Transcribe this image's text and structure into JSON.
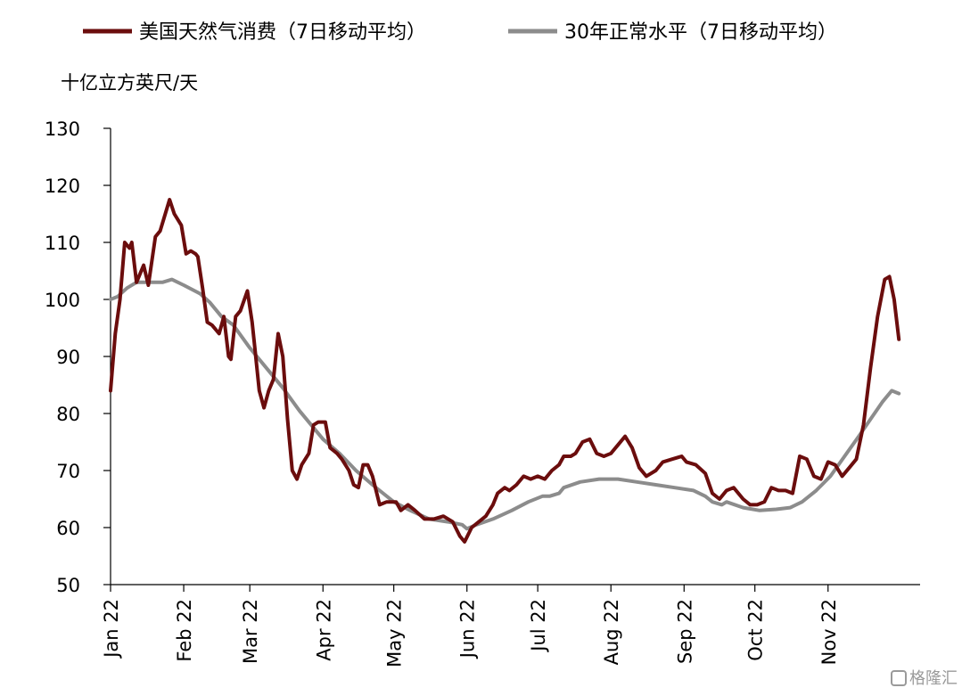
{
  "chart_data": {
    "type": "line",
    "ylabel": "十亿立方英尺/天",
    "ylim": [
      50,
      130
    ],
    "yticks": [
      50,
      60,
      70,
      80,
      90,
      100,
      110,
      120,
      130
    ],
    "xlim": [
      "2022-01-01",
      "2022-12-10"
    ],
    "xticks": [
      {
        "date": "2022-01-01",
        "label": "Jan 22"
      },
      {
        "date": "2022-02-01",
        "label": "Feb 22"
      },
      {
        "date": "2022-03-01",
        "label": "Mar 22"
      },
      {
        "date": "2022-04-01",
        "label": "Apr 22"
      },
      {
        "date": "2022-05-01",
        "label": "May 22"
      },
      {
        "date": "2022-06-01",
        "label": "Jun 22"
      },
      {
        "date": "2022-07-01",
        "label": "Jul 22"
      },
      {
        "date": "2022-08-01",
        "label": "Aug 22"
      },
      {
        "date": "2022-09-01",
        "label": "Sep 22"
      },
      {
        "date": "2022-10-01",
        "label": "Oct 22"
      },
      {
        "date": "2022-11-01",
        "label": "Nov 22"
      }
    ],
    "legend_position": "top",
    "grid": false,
    "series": [
      {
        "name": "美国天然气消费（7日移动平均）",
        "color": "#6b0d0d",
        "points": [
          [
            "2022-01-01",
            84
          ],
          [
            "2022-01-03",
            94
          ],
          [
            "2022-01-05",
            100
          ],
          [
            "2022-01-07",
            110
          ],
          [
            "2022-01-09",
            109
          ],
          [
            "2022-01-10",
            110
          ],
          [
            "2022-01-12",
            103
          ],
          [
            "2022-01-15",
            106
          ],
          [
            "2022-01-17",
            102.5
          ],
          [
            "2022-01-20",
            111
          ],
          [
            "2022-01-22",
            112
          ],
          [
            "2022-01-26",
            117.5
          ],
          [
            "2022-01-28",
            115
          ],
          [
            "2022-01-31",
            113
          ],
          [
            "2022-02-02",
            108
          ],
          [
            "2022-02-04",
            108.5
          ],
          [
            "2022-02-06",
            108
          ],
          [
            "2022-02-07",
            107.5
          ],
          [
            "2022-02-09",
            102
          ],
          [
            "2022-02-11",
            96
          ],
          [
            "2022-02-13",
            95.5
          ],
          [
            "2022-02-16",
            94
          ],
          [
            "2022-02-18",
            97
          ],
          [
            "2022-02-20",
            90
          ],
          [
            "2022-02-21",
            89.5
          ],
          [
            "2022-02-23",
            97
          ],
          [
            "2022-02-25",
            98
          ],
          [
            "2022-02-28",
            101.5
          ],
          [
            "2022-03-02",
            96
          ],
          [
            "2022-03-03",
            92
          ],
          [
            "2022-03-05",
            84
          ],
          [
            "2022-03-07",
            81
          ],
          [
            "2022-03-09",
            84
          ],
          [
            "2022-03-11",
            86
          ],
          [
            "2022-03-13",
            94
          ],
          [
            "2022-03-15",
            90
          ],
          [
            "2022-03-17",
            79
          ],
          [
            "2022-03-19",
            70
          ],
          [
            "2022-03-21",
            68.5
          ],
          [
            "2022-03-23",
            71
          ],
          [
            "2022-03-26",
            73
          ],
          [
            "2022-03-28",
            78
          ],
          [
            "2022-03-30",
            78.5
          ],
          [
            "2022-04-02",
            78.5
          ],
          [
            "2022-04-04",
            74
          ],
          [
            "2022-04-07",
            73
          ],
          [
            "2022-04-09",
            72
          ],
          [
            "2022-04-12",
            70
          ],
          [
            "2022-04-14",
            67.5
          ],
          [
            "2022-04-16",
            67
          ],
          [
            "2022-04-18",
            71
          ],
          [
            "2022-04-20",
            71
          ],
          [
            "2022-04-22",
            69
          ],
          [
            "2022-04-25",
            64
          ],
          [
            "2022-04-28",
            64.5
          ],
          [
            "2022-05-02",
            64.5
          ],
          [
            "2022-05-04",
            63
          ],
          [
            "2022-05-07",
            64
          ],
          [
            "2022-05-10",
            63
          ],
          [
            "2022-05-14",
            61.5
          ],
          [
            "2022-05-18",
            61.5
          ],
          [
            "2022-05-22",
            62
          ],
          [
            "2022-05-26",
            61
          ],
          [
            "2022-05-29",
            58.5
          ],
          [
            "2022-05-31",
            57.5
          ],
          [
            "2022-06-03",
            60
          ],
          [
            "2022-06-06",
            61
          ],
          [
            "2022-06-09",
            62
          ],
          [
            "2022-06-12",
            64
          ],
          [
            "2022-06-14",
            66
          ],
          [
            "2022-06-17",
            67
          ],
          [
            "2022-06-19",
            66.5
          ],
          [
            "2022-06-22",
            67.5
          ],
          [
            "2022-06-25",
            69
          ],
          [
            "2022-06-28",
            68.5
          ],
          [
            "2022-07-01",
            69
          ],
          [
            "2022-07-04",
            68.5
          ],
          [
            "2022-07-07",
            70
          ],
          [
            "2022-07-10",
            71
          ],
          [
            "2022-07-12",
            72.5
          ],
          [
            "2022-07-15",
            72.5
          ],
          [
            "2022-07-17",
            73
          ],
          [
            "2022-07-20",
            75
          ],
          [
            "2022-07-23",
            75.5
          ],
          [
            "2022-07-26",
            73
          ],
          [
            "2022-07-29",
            72.5
          ],
          [
            "2022-08-01",
            73
          ],
          [
            "2022-08-04",
            74.5
          ],
          [
            "2022-08-07",
            76
          ],
          [
            "2022-08-10",
            74
          ],
          [
            "2022-08-13",
            70.5
          ],
          [
            "2022-08-16",
            69
          ],
          [
            "2022-08-20",
            70
          ],
          [
            "2022-08-23",
            71.5
          ],
          [
            "2022-08-27",
            72
          ],
          [
            "2022-08-31",
            72.5
          ],
          [
            "2022-09-02",
            71.5
          ],
          [
            "2022-09-06",
            71
          ],
          [
            "2022-09-10",
            69.5
          ],
          [
            "2022-09-13",
            66
          ],
          [
            "2022-09-16",
            65
          ],
          [
            "2022-09-19",
            66.5
          ],
          [
            "2022-09-22",
            67
          ],
          [
            "2022-09-26",
            65
          ],
          [
            "2022-09-29",
            64
          ],
          [
            "2022-10-02",
            64
          ],
          [
            "2022-10-05",
            64.5
          ],
          [
            "2022-10-08",
            67
          ],
          [
            "2022-10-11",
            66.5
          ],
          [
            "2022-10-14",
            66.5
          ],
          [
            "2022-10-17",
            66
          ],
          [
            "2022-10-20",
            72.5
          ],
          [
            "2022-10-23",
            72
          ],
          [
            "2022-10-26",
            69
          ],
          [
            "2022-10-29",
            68.5
          ],
          [
            "2022-11-01",
            71.5
          ],
          [
            "2022-11-04",
            71
          ],
          [
            "2022-11-07",
            69
          ],
          [
            "2022-11-10",
            70.5
          ],
          [
            "2022-11-13",
            72
          ],
          [
            "2022-11-16",
            78
          ],
          [
            "2022-11-19",
            88
          ],
          [
            "2022-11-22",
            97
          ],
          [
            "2022-11-25",
            103.5
          ],
          [
            "2022-11-27",
            104
          ],
          [
            "2022-11-29",
            100
          ],
          [
            "2022-12-01",
            93
          ]
        ]
      },
      {
        "name": "30年正常水平（7日移动平均）",
        "color": "#8c8c8c",
        "points": [
          [
            "2022-01-01",
            100
          ],
          [
            "2022-01-04",
            100.5
          ],
          [
            "2022-01-08",
            102
          ],
          [
            "2022-01-12",
            103
          ],
          [
            "2022-01-18",
            103
          ],
          [
            "2022-01-23",
            103
          ],
          [
            "2022-01-27",
            103.5
          ],
          [
            "2022-02-01",
            102.5
          ],
          [
            "2022-02-08",
            101
          ],
          [
            "2022-02-12",
            99.5
          ],
          [
            "2022-02-17",
            97
          ],
          [
            "2022-02-22",
            95.5
          ],
          [
            "2022-03-01",
            91.5
          ],
          [
            "2022-03-08",
            88
          ],
          [
            "2022-03-15",
            84.5
          ],
          [
            "2022-03-22",
            80.5
          ],
          [
            "2022-04-01",
            75.5
          ],
          [
            "2022-04-08",
            73
          ],
          [
            "2022-04-15",
            70
          ],
          [
            "2022-04-22",
            67.5
          ],
          [
            "2022-05-01",
            64.5
          ],
          [
            "2022-05-08",
            63
          ],
          [
            "2022-05-16",
            61.5
          ],
          [
            "2022-05-24",
            61
          ],
          [
            "2022-05-30",
            60.5
          ],
          [
            "2022-06-01",
            59.8
          ],
          [
            "2022-06-05",
            60.5
          ],
          [
            "2022-06-12",
            61.5
          ],
          [
            "2022-06-20",
            63
          ],
          [
            "2022-06-27",
            64.5
          ],
          [
            "2022-07-03",
            65.5
          ],
          [
            "2022-07-06",
            65.5
          ],
          [
            "2022-07-10",
            66
          ],
          [
            "2022-07-12",
            67
          ],
          [
            "2022-07-19",
            68
          ],
          [
            "2022-07-27",
            68.5
          ],
          [
            "2022-08-04",
            68.5
          ],
          [
            "2022-08-12",
            68
          ],
          [
            "2022-08-20",
            67.5
          ],
          [
            "2022-08-28",
            67
          ],
          [
            "2022-09-05",
            66.5
          ],
          [
            "2022-09-10",
            65.5
          ],
          [
            "2022-09-13",
            64.5
          ],
          [
            "2022-09-17",
            64
          ],
          [
            "2022-09-19",
            64.5
          ],
          [
            "2022-09-26",
            63.5
          ],
          [
            "2022-10-03",
            63
          ],
          [
            "2022-10-10",
            63.2
          ],
          [
            "2022-10-16",
            63.5
          ],
          [
            "2022-10-21",
            64.5
          ],
          [
            "2022-10-27",
            66.5
          ],
          [
            "2022-11-02",
            69
          ],
          [
            "2022-11-08",
            72.5
          ],
          [
            "2022-11-14",
            76
          ],
          [
            "2022-11-19",
            79
          ],
          [
            "2022-11-24",
            82
          ],
          [
            "2022-11-28",
            84
          ],
          [
            "2022-12-01",
            83.5
          ]
        ]
      }
    ]
  },
  "watermark": {
    "text": "格隆汇"
  }
}
